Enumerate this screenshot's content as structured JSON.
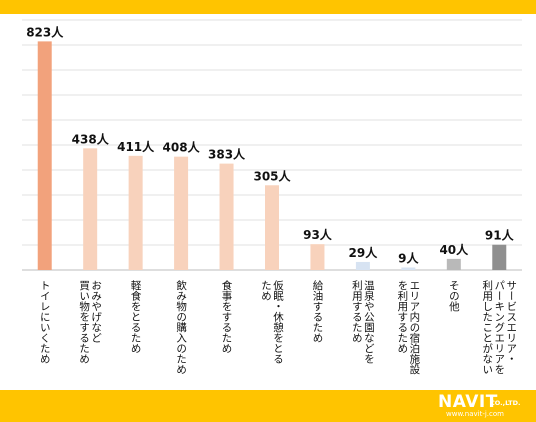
{
  "chart_data": {
    "type": "bar",
    "unit": "人",
    "categories": [
      "トイレにいくため",
      "おみやげなど買い物をするため",
      "軽食をとるため",
      "飲み物の購入のため",
      "食事をするため",
      "仮眠・休憩をとるため",
      "給油するため",
      "温泉や公園などを利用するため",
      "エリア内の宿泊施設を利用するため",
      "その他",
      "サービスエリア・パーキングエリアを利用したことがない"
    ],
    "label_lines": [
      [
        "トイレにいくため"
      ],
      [
        "おみやげなど",
        "買い物をするため"
      ],
      [
        "軽食をとるため"
      ],
      [
        "飲み物の購入のため"
      ],
      [
        "食事をするため"
      ],
      [
        "仮眠・休憩をとる",
        "ため"
      ],
      [
        "給油するため"
      ],
      [
        "温泉や公園などを",
        "利用するため"
      ],
      [
        "エリア内の宿泊施設",
        "を利用するため"
      ],
      [
        "その他"
      ],
      [
        "サービスエリア・",
        "パーキングエリアを",
        "利用したことがない"
      ]
    ],
    "values": [
      823,
      438,
      411,
      408,
      383,
      305,
      93,
      29,
      9,
      40,
      91
    ],
    "value_labels": [
      "823人",
      "438人",
      "411人",
      "408人",
      "383人",
      "305人",
      "93人",
      "29人",
      "9人",
      "40人",
      "91人"
    ],
    "bar_colors": [
      "#f2a27c",
      "#f8d2bc",
      "#f8d2bc",
      "#f8d2bc",
      "#f8d2bc",
      "#f8d2bc",
      "#f8d2bc",
      "#d7e3f2",
      "#d7e3f2",
      "#b9b9b9",
      "#8f8f8f"
    ],
    "ylim": [
      0,
      900
    ],
    "grid": true,
    "legend": "none",
    "title": "",
    "xlabel": "",
    "ylabel": ""
  },
  "footer": {
    "brand": "NAVIT",
    "suffix": "CO.,LTD.",
    "url": "www.navit-j.com",
    "band_color": "#ffc400"
  }
}
